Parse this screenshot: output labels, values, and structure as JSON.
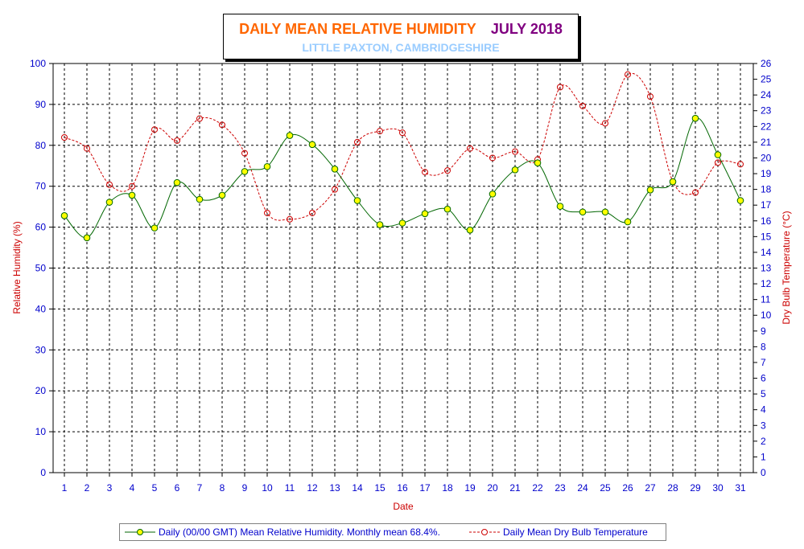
{
  "title": {
    "main": "DAILY MEAN RELATIVE HUMIDITY",
    "period": "JULY 2018",
    "subtitle": "LITTLE PAXTON, CAMBRIDGESHIRE"
  },
  "colors": {
    "title_main": "#FF6600",
    "title_period": "#800080",
    "subtitle": "#99CCFF",
    "humidity_line": "#006600",
    "humidity_marker": "#FFFF00",
    "temperature": "#CC0000",
    "axis_text": "#0000CC",
    "axis_label": "#CC0000"
  },
  "chart_data": {
    "type": "line",
    "xlabel": "Date",
    "ylabel": "Relative Humidity (%)",
    "y2label": "Dry Bulb Temperature (°C)",
    "ylim": [
      0,
      100
    ],
    "y2lim": [
      0,
      26
    ],
    "grid": true,
    "legend_position": "bottom",
    "categories": [
      "1",
      "2",
      "3",
      "4",
      "5",
      "6",
      "7",
      "8",
      "9",
      "10",
      "11",
      "12",
      "13",
      "14",
      "15",
      "16",
      "17",
      "18",
      "19",
      "20",
      "21",
      "22",
      "23",
      "24",
      "25",
      "26",
      "27",
      "28",
      "29",
      "30",
      "31"
    ],
    "yticks": [
      "0",
      "10",
      "20",
      "30",
      "40",
      "50",
      "60",
      "70",
      "80",
      "90",
      "100"
    ],
    "y2ticks": [
      "0",
      "1",
      "2",
      "3",
      "4",
      "5",
      "6",
      "7",
      "8",
      "9",
      "10",
      "11",
      "12",
      "13",
      "14",
      "15",
      "16",
      "17",
      "18",
      "19",
      "20",
      "21",
      "22",
      "23",
      "24",
      "25",
      "26"
    ],
    "series": [
      {
        "name": "Daily (00/00 GMT) Mean Relative Humidity. Monthly mean 68.4%.",
        "axis": "left",
        "values": [
          62.8,
          57.4,
          66.1,
          67.8,
          59.8,
          70.9,
          66.8,
          67.8,
          73.6,
          74.8,
          82.4,
          80.2,
          74.2,
          66.5,
          60.6,
          61.0,
          63.3,
          64.4,
          59.3,
          68.1,
          74.0,
          75.7,
          65.1,
          63.7,
          63.7,
          61.3,
          69.1,
          71.1,
          86.6,
          77.7,
          66.5
        ]
      },
      {
        "name": "Daily Mean Dry Bulb Temperature",
        "axis": "right",
        "values": [
          21.3,
          20.6,
          18.3,
          18.2,
          21.8,
          21.1,
          22.5,
          22.1,
          20.3,
          16.5,
          16.1,
          16.5,
          18.0,
          21.0,
          21.7,
          21.6,
          19.1,
          19.2,
          20.6,
          20.0,
          20.4,
          19.9,
          24.5,
          23.3,
          22.2,
          25.3,
          23.9,
          18.5,
          17.8,
          19.7,
          19.6
        ]
      }
    ]
  }
}
